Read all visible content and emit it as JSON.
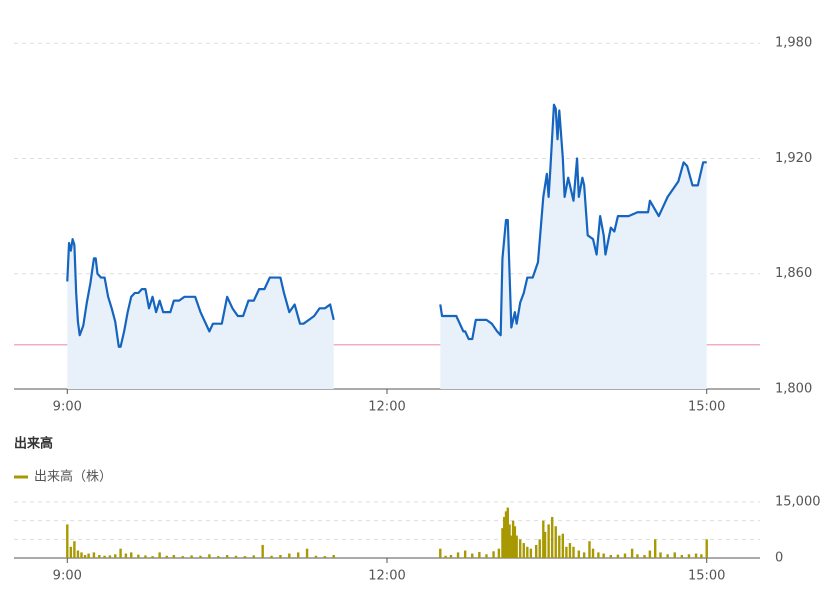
{
  "chart_data": [
    {
      "type": "line",
      "color": "#1565c0",
      "fill": "#e8f1fa",
      "reference_line": 1823,
      "reference_color": "#f090b0",
      "xlim": [
        "8:30",
        "15:30"
      ],
      "xticks": [
        "9:00",
        "12:00",
        "15:00"
      ],
      "ylim": [
        1800,
        1990
      ],
      "yticks": [
        {
          "value": 1800,
          "label": "1,800"
        },
        {
          "value": 1860,
          "label": "1,860"
        },
        {
          "value": 1920,
          "label": "1,920"
        },
        {
          "value": 1980,
          "label": "1,980"
        }
      ],
      "x": [
        "9:00",
        "9:01",
        "9:02",
        "9:03",
        "9:04",
        "9:05",
        "9:06",
        "9:07",
        "9:09",
        "9:11",
        "9:13",
        "9:15",
        "9:16",
        "9:17",
        "9:19",
        "9:21",
        "9:23",
        "9:25",
        "9:27",
        "9:29",
        "9:30",
        "9:32",
        "9:34",
        "9:36",
        "9:38",
        "9:40",
        "9:42",
        "9:44",
        "9:46",
        "9:48",
        "9:50",
        "9:52",
        "9:54",
        "9:56",
        "9:58",
        "10:00",
        "10:03",
        "10:06",
        "10:09",
        "10:12",
        "10:15",
        "10:20",
        "10:22",
        "10:25",
        "10:27",
        "10:30",
        "10:33",
        "10:36",
        "10:39",
        "10:42",
        "10:45",
        "10:48",
        "10:51",
        "10:54",
        "10:57",
        "11:00",
        "11:02",
        "11:05",
        "11:08",
        "11:11",
        "11:13",
        "11:16",
        "11:19",
        "11:22",
        "11:25",
        "11:28",
        "11:30",
        "12:00",
        "12:30",
        "12:31",
        "12:33",
        "12:36",
        "12:39",
        "12:43",
        "12:44",
        "12:46",
        "12:48",
        "12:50",
        "12:53",
        "12:56",
        "12:59",
        "13:02",
        "13:04",
        "13:05",
        "13:07",
        "13:08",
        "13:09",
        "13:10",
        "13:12",
        "13:13",
        "13:15",
        "13:17",
        "13:19",
        "13:22",
        "13:25",
        "13:28",
        "13:30",
        "13:31",
        "13:32",
        "13:34",
        "13:35",
        "13:36",
        "13:37",
        "13:39",
        "13:40",
        "13:42",
        "13:45",
        "13:47",
        "13:48",
        "13:50",
        "13:51",
        "13:53",
        "13:56",
        "13:58",
        "14:00",
        "14:02",
        "14:03",
        "14:06",
        "14:08",
        "14:10",
        "14:16",
        "14:21",
        "14:27",
        "14:28",
        "14:33",
        "14:35",
        "14:38",
        "14:44",
        "14:47",
        "14:49",
        "14:52",
        "14:55",
        "14:58",
        "15:00"
      ],
      "values": [
        1856,
        1876,
        1872,
        1878,
        1875,
        1850,
        1835,
        1828,
        1833,
        1845,
        1855,
        1868,
        1868,
        1860,
        1858,
        1858,
        1848,
        1842,
        1835,
        1822,
        1822,
        1830,
        1840,
        1848,
        1850,
        1850,
        1852,
        1852,
        1842,
        1848,
        1840,
        1846,
        1840,
        1840,
        1840,
        1846,
        1846,
        1848,
        1848,
        1848,
        1840,
        1830,
        1834,
        1834,
        1834,
        1848,
        1842,
        1838,
        1838,
        1846,
        1846,
        1852,
        1852,
        1858,
        1858,
        1858,
        1850,
        1840,
        1844,
        1834,
        1834,
        1836,
        1838,
        1842,
        1842,
        1844,
        1836,
        null,
        1844,
        1838,
        1838,
        1838,
        1838,
        1830,
        1830,
        1826,
        1826,
        1836,
        1836,
        1836,
        1834,
        1830,
        1828,
        1868,
        1888,
        1888,
        1860,
        1832,
        1840,
        1834,
        1845,
        1850,
        1858,
        1858,
        1866,
        1900,
        1912,
        1900,
        1915,
        1948,
        1946,
        1930,
        1945,
        1920,
        1900,
        1910,
        1898,
        1920,
        1900,
        1910,
        1906,
        1880,
        1878,
        1870,
        1890,
        1880,
        1870,
        1884,
        1882,
        1890,
        1890,
        1892,
        1892,
        1898,
        1890,
        1894,
        1900,
        1908,
        1918,
        1916,
        1906,
        1906,
        1918,
        1918
      ]
    },
    {
      "type": "bar",
      "title": "出来高",
      "color": "#a89900",
      "legend": "top-left",
      "xlim": [
        "8:30",
        "15:30"
      ],
      "xticks": [
        "9:00",
        "12:00",
        "15:00"
      ],
      "ylim": [
        0,
        15000
      ],
      "yticks": [
        0,
        {
          "value": 15000,
          "label": "15,000"
        }
      ],
      "minor_grid": [
        5000,
        10000
      ],
      "series": [
        {
          "name": "出来高（株）",
          "color": "#a89900",
          "x": [
            "9:00",
            "9:02",
            "9:04",
            "9:06",
            "9:08",
            "9:10",
            "9:12",
            "9:15",
            "9:18",
            "9:21",
            "9:24",
            "9:27",
            "9:30",
            "9:33",
            "9:36",
            "9:40",
            "9:44",
            "9:48",
            "9:52",
            "9:56",
            "10:00",
            "10:05",
            "10:10",
            "10:15",
            "10:20",
            "10:25",
            "10:30",
            "10:35",
            "10:40",
            "10:45",
            "10:50",
            "10:55",
            "11:00",
            "11:05",
            "11:10",
            "11:15",
            "11:20",
            "11:25",
            "11:30",
            "12:30",
            "12:33",
            "12:36",
            "12:40",
            "12:44",
            "12:48",
            "12:52",
            "12:56",
            "13:00",
            "13:03",
            "13:05",
            "13:06",
            "13:07",
            "13:08",
            "13:09",
            "13:10",
            "13:11",
            "13:12",
            "13:13",
            "13:15",
            "13:17",
            "13:19",
            "13:21",
            "13:24",
            "13:26",
            "13:28",
            "13:29",
            "13:31",
            "13:33",
            "13:35",
            "13:37",
            "13:39",
            "13:41",
            "13:43",
            "13:45",
            "13:48",
            "13:51",
            "13:54",
            "13:56",
            "13:59",
            "14:02",
            "14:06",
            "14:10",
            "14:14",
            "14:18",
            "14:21",
            "14:25",
            "14:28",
            "14:31",
            "14:34",
            "14:38",
            "14:42",
            "14:46",
            "14:50",
            "14:54",
            "14:57",
            "15:00"
          ],
          "values": [
            9000,
            3000,
            4500,
            2000,
            1500,
            800,
            1200,
            1500,
            800,
            600,
            700,
            1000,
            2500,
            1200,
            1500,
            900,
            700,
            500,
            1500,
            600,
            800,
            500,
            700,
            600,
            1000,
            500,
            800,
            600,
            500,
            700,
            3500,
            600,
            800,
            1200,
            1500,
            2500,
            600,
            500,
            800,
            2500,
            600,
            800,
            1500,
            2000,
            1200,
            1600,
            1000,
            1800,
            2500,
            8000,
            11000,
            12500,
            13500,
            9000,
            6000,
            10000,
            8500,
            6000,
            5000,
            4000,
            3000,
            2500,
            3500,
            5000,
            10000,
            7000,
            9000,
            11000,
            8500,
            6000,
            6500,
            3000,
            4000,
            3000,
            2000,
            1500,
            4500,
            2500,
            1500,
            1200,
            800,
            900,
            1200,
            2500,
            1000,
            800,
            2000,
            5000,
            1500,
            1000,
            1500,
            800,
            1000,
            1200,
            1000,
            5000
          ]
        }
      ]
    }
  ]
}
